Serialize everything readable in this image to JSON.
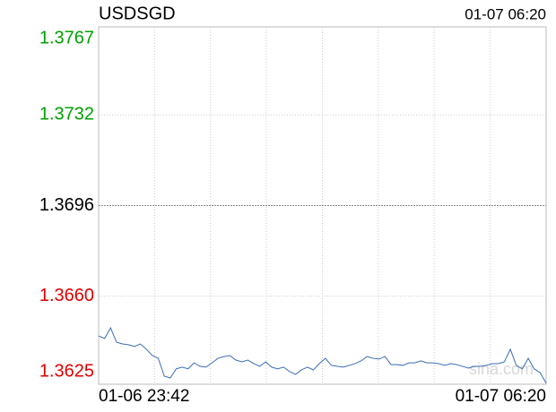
{
  "chart_data": {
    "type": "line",
    "title": "USDSGD",
    "timestamp": "01-07 06:20",
    "x_start_label": "01-06 23:42",
    "x_end_label": "01-07 06:20",
    "watermark": "sina.com",
    "ylim": [
      1.3625,
      1.3767
    ],
    "yticks": [
      1.3625,
      {
        "value": 1.366,
        "label": "1.3660"
      },
      1.3696,
      1.3732,
      1.3767
    ],
    "ytick_colors": [
      "#e00000",
      "#e00000",
      "#000000",
      "#00a000",
      "#00a000"
    ],
    "vertical_grid_divisions": 8,
    "series": [
      {
        "color": "#3a6db5",
        "values": [
          1.36442,
          1.36432,
          1.36474,
          1.36417,
          1.3641,
          1.36407,
          1.364,
          1.3641,
          1.36389,
          1.36364,
          1.36353,
          1.36282,
          1.36275,
          1.36311,
          1.36318,
          1.36311,
          1.36335,
          1.36321,
          1.36318,
          1.36335,
          1.36353,
          1.3636,
          1.36364,
          1.36346,
          1.36339,
          1.36346,
          1.36332,
          1.36321,
          1.36339,
          1.36318,
          1.36311,
          1.36318,
          1.363,
          1.36289,
          1.36307,
          1.36318,
          1.36307,
          1.36332,
          1.36353,
          1.36325,
          1.36321,
          1.36318,
          1.36325,
          1.36332,
          1.36343,
          1.3636,
          1.36353,
          1.3635,
          1.3636,
          1.36328,
          1.36328,
          1.36325,
          1.36335,
          1.36335,
          1.36343,
          1.36335,
          1.36335,
          1.36332,
          1.36325,
          1.36332,
          1.36328,
          1.36321,
          1.36314,
          1.36321,
          1.36321,
          1.36325,
          1.36332,
          1.36332,
          1.36339,
          1.36389,
          1.36325,
          1.36311,
          1.36353,
          1.36311,
          1.36296,
          1.36254
        ]
      }
    ]
  }
}
